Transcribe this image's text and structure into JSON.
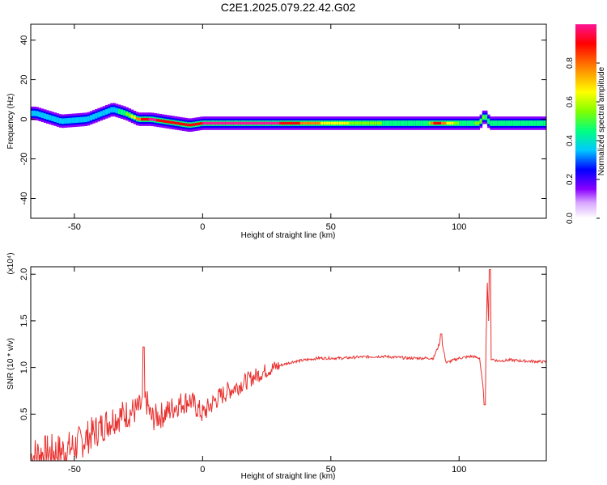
{
  "title": "C2E1.2025.079.22.42.G02",
  "chart_data": [
    {
      "type": "heatmap",
      "title": "C2E1.2025.079.22.42.G02",
      "xlabel": "Height of straight line (km)",
      "ylabel": "Frequency (Hz)",
      "xlim": [
        -67,
        134
      ],
      "ylim": [
        -50,
        48
      ],
      "xticks": [
        -50,
        0,
        50,
        100
      ],
      "yticks": [
        -40,
        -20,
        0,
        20,
        40
      ],
      "colorbar": {
        "label": "Normalized spectral amplitude",
        "range": [
          0,
          1
        ],
        "ticks": [
          "0.0",
          "0.2",
          "0.4",
          "0.6",
          "0.8"
        ],
        "colors": [
          "#ffffff",
          "#d9a6ff",
          "#8a00ff",
          "#0000ff",
          "#00c8ff",
          "#00ff80",
          "#80ff00",
          "#ffff00",
          "#ff8000",
          "#ff0000",
          "#ff1493"
        ]
      },
      "ridge": {
        "x": [
          -65,
          -55,
          -45,
          -35,
          -30,
          -25,
          -20,
          -15,
          -10,
          -5,
          0,
          10,
          30,
          50,
          70,
          88,
          90,
          100,
          105,
          108,
          110,
          112,
          120,
          134
        ],
        "y": [
          3,
          -1,
          0,
          5,
          3,
          0,
          0,
          -1,
          -2,
          -3,
          -2,
          -2,
          -2,
          -2,
          -2,
          -2,
          -2,
          -2,
          -2,
          -2,
          2,
          -2,
          -2,
          -2
        ],
        "amplitude": [
          0.35,
          0.45,
          0.4,
          0.4,
          0.55,
          0.8,
          1.0,
          0.85,
          0.9,
          0.9,
          0.95,
          0.95,
          0.95,
          0.7,
          0.55,
          0.5,
          0.95,
          0.55,
          0.5,
          0.6,
          0.55,
          0.5,
          0.5,
          0.45
        ]
      }
    },
    {
      "type": "line",
      "xlabel": "Height of straight line (km)",
      "ylabel": "SNR (10 * v/v)",
      "y_multiplier": "(x10⁴)",
      "xlim": [
        -67,
        134
      ],
      "ylim": [
        0,
        2.08
      ],
      "xticks": [
        -50,
        0,
        50,
        100
      ],
      "yticks": [
        "0.5",
        "1.0",
        "1.5",
        "2.0"
      ],
      "color": "#e8302e",
      "series": [
        {
          "x": [
            -67,
            -60,
            -55,
            -50,
            -45,
            -40,
            -35,
            -30,
            -25,
            -22,
            -20,
            -15,
            -10,
            -5,
            0,
            5,
            10,
            15,
            20,
            25,
            30,
            35,
            40,
            45,
            50,
            55,
            60,
            70,
            80,
            88,
            90,
            93,
            95,
            100,
            105,
            108,
            110,
            111,
            112,
            115,
            120,
            125,
            134
          ],
          "y": [
            0.05,
            0.08,
            0.1,
            0.15,
            0.25,
            0.35,
            0.45,
            0.5,
            0.55,
            0.65,
            0.45,
            0.5,
            0.6,
            0.65,
            0.5,
            0.65,
            0.75,
            0.82,
            0.9,
            0.97,
            1.02,
            1.06,
            1.08,
            1.1,
            1.1,
            1.1,
            1.11,
            1.12,
            1.1,
            1.1,
            1.1,
            1.3,
            1.05,
            1.1,
            1.12,
            1.1,
            0.62,
            1.9,
            1.1,
            1.07,
            1.08,
            1.07,
            1.06
          ]
        }
      ],
      "spikes": [
        {
          "x": -23,
          "y": 1.22
        },
        {
          "x": 93,
          "y": 1.36
        },
        {
          "x": 110,
          "y": 0.6
        },
        {
          "x": 112,
          "y": 2.05
        }
      ]
    }
  ]
}
